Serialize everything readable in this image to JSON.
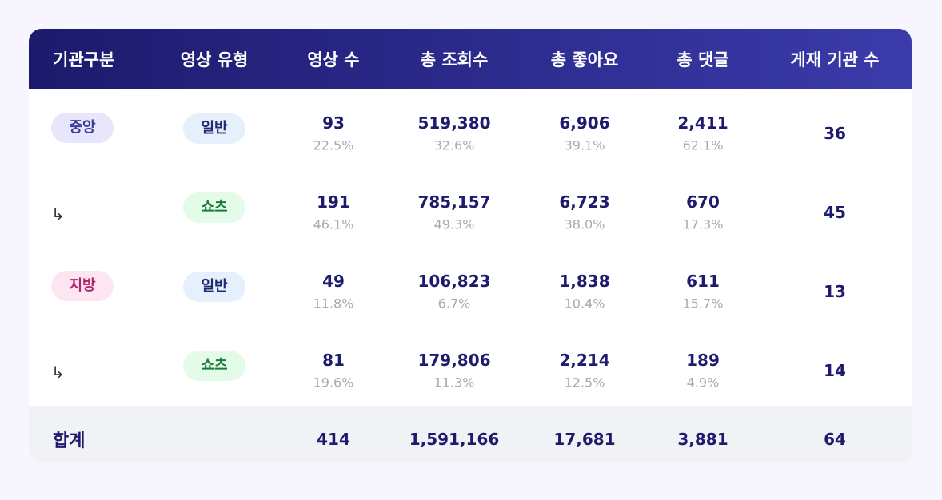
{
  "table": {
    "columns": [
      "기관구분",
      "영상 유형",
      "영상 수",
      "총 조회수",
      "총 좋아요",
      "총 댓글",
      "게재 기관 수"
    ],
    "rows": [
      {
        "org": "중앙",
        "type": "일반",
        "videos": {
          "value": "93",
          "share": "22.5%"
        },
        "views": {
          "value": "519,380",
          "share": "32.6%"
        },
        "likes": {
          "value": "6,906",
          "share": "39.1%"
        },
        "comments": {
          "value": "2,411",
          "share": "62.1%"
        },
        "agencies": "36"
      },
      {
        "org": "↳",
        "type": "쇼츠",
        "videos": {
          "value": "191",
          "share": "46.1%"
        },
        "views": {
          "value": "785,157",
          "share": "49.3%"
        },
        "likes": {
          "value": "6,723",
          "share": "38.0%"
        },
        "comments": {
          "value": "670",
          "share": "17.3%"
        },
        "agencies": "45"
      },
      {
        "org": "지방",
        "type": "일반",
        "videos": {
          "value": "49",
          "share": "11.8%"
        },
        "views": {
          "value": "106,823",
          "share": "6.7%"
        },
        "likes": {
          "value": "1,838",
          "share": "10.4%"
        },
        "comments": {
          "value": "611",
          "share": "15.7%"
        },
        "agencies": "13"
      },
      {
        "org": "↳",
        "type": "쇼츠",
        "videos": {
          "value": "81",
          "share": "19.6%"
        },
        "views": {
          "value": "179,806",
          "share": "11.3%"
        },
        "likes": {
          "value": "2,214",
          "share": "12.5%"
        },
        "comments": {
          "value": "189",
          "share": "4.9%"
        },
        "agencies": "14"
      }
    ],
    "total": {
      "label": "합계",
      "videos": "414",
      "views": "1,591,166",
      "likes": "17,681",
      "comments": "3,881",
      "agencies": "64"
    }
  }
}
